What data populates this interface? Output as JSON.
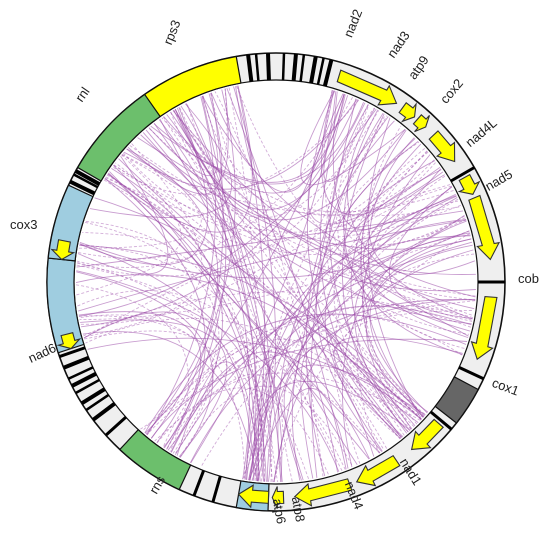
{
  "colors": {
    "link": "#9b4aa8",
    "rRNA": "#6cbf6c",
    "cox_block": "#9fcde0",
    "cox1_block": "#666666",
    "gene_arrow": "#ffff00",
    "gene_arrow_stroke": "#333333",
    "repeat_bar": "#000000",
    "ring": "#efefef"
  },
  "labels": {
    "rps3": "rps3",
    "nad2": "nad2",
    "nad3": "nad3",
    "atp9": "atp9",
    "cox2": "cox2",
    "nad4L": "nad4L",
    "nad5": "nad5",
    "cob": "cob",
    "cox1": "cox1",
    "nad1": "nad1",
    "nad4": "nad4",
    "atp8": "atp8",
    "atp6": "atp6",
    "rns": "rns",
    "nad6": "nad6",
    "cox3": "cox3",
    "rnl": "rnl"
  },
  "segments": [
    {
      "id": "rps3",
      "type": "block",
      "color": "#ffff00",
      "start": 322,
      "end": 350
    },
    {
      "id": "repeats-top",
      "type": "bars",
      "angles": [
        353,
        355,
        358,
        2,
        5,
        7,
        10,
        12,
        14
      ]
    },
    {
      "id": "nad2",
      "type": "arrow",
      "start": 17,
      "end": 34,
      "dir": "cw"
    },
    {
      "id": "nad3",
      "type": "arrow",
      "start": 36,
      "end": 40,
      "dir": "cw"
    },
    {
      "id": "atp9",
      "type": "arrow",
      "start": 41,
      "end": 44,
      "dir": "cw"
    },
    {
      "id": "cox2",
      "type": "arrow",
      "start": 47,
      "end": 56,
      "dir": "cw"
    },
    {
      "id": "nad4L",
      "type": "arrow",
      "start": 61,
      "end": 66,
      "dir": "cw"
    },
    {
      "id": "nad5",
      "type": "arrow",
      "start": 67,
      "end": 84,
      "dir": "cw"
    },
    {
      "id": "cob",
      "type": "arrow",
      "start": 94,
      "end": 111,
      "dir": "cw"
    },
    {
      "id": "cox1-block",
      "type": "block",
      "color": "#666666",
      "start": 118,
      "end": 128
    },
    {
      "id": "cox1",
      "type": "arrow",
      "start": 131,
      "end": 141,
      "dir": "cw"
    },
    {
      "id": "nad1",
      "type": "arrow",
      "start": 146,
      "end": 158,
      "dir": "cw"
    },
    {
      "id": "nad4",
      "type": "arrow",
      "start": 160,
      "end": 175,
      "dir": "cw"
    },
    {
      "id": "atp8",
      "type": "arrow",
      "start": 178,
      "end": 181,
      "dir": "cw"
    },
    {
      "id": "atp6",
      "type": "arrow",
      "start": 182,
      "end": 190,
      "dir": "cw"
    },
    {
      "id": "atp6-block",
      "type": "block",
      "color": "#9fcde0",
      "start": 182,
      "end": 190
    },
    {
      "id": "rns",
      "type": "block",
      "color": "#6cbf6c",
      "start": 205,
      "end": 223
    },
    {
      "id": "repeats-left",
      "type": "bars",
      "angles": [
        233,
        236,
        238,
        241,
        243,
        245,
        248
      ]
    },
    {
      "id": "nad6",
      "type": "arrow",
      "start": 252,
      "end": 256,
      "dir": "ccw"
    },
    {
      "id": "nad6-block",
      "type": "block",
      "color": "#9fcde0",
      "start": 252,
      "end": 276
    },
    {
      "id": "cox3",
      "type": "arrow",
      "start": 276,
      "end": 281,
      "dir": "ccw"
    },
    {
      "id": "cox3-block",
      "type": "block",
      "color": "#9fcde0",
      "start": 276,
      "end": 295
    },
    {
      "id": "repeats-upper-left",
      "type": "bars",
      "angles": [
        296,
        298,
        299
      ]
    },
    {
      "id": "rnl",
      "type": "block",
      "color": "#6cbf6c",
      "start": 300,
      "end": 325
    }
  ]
}
